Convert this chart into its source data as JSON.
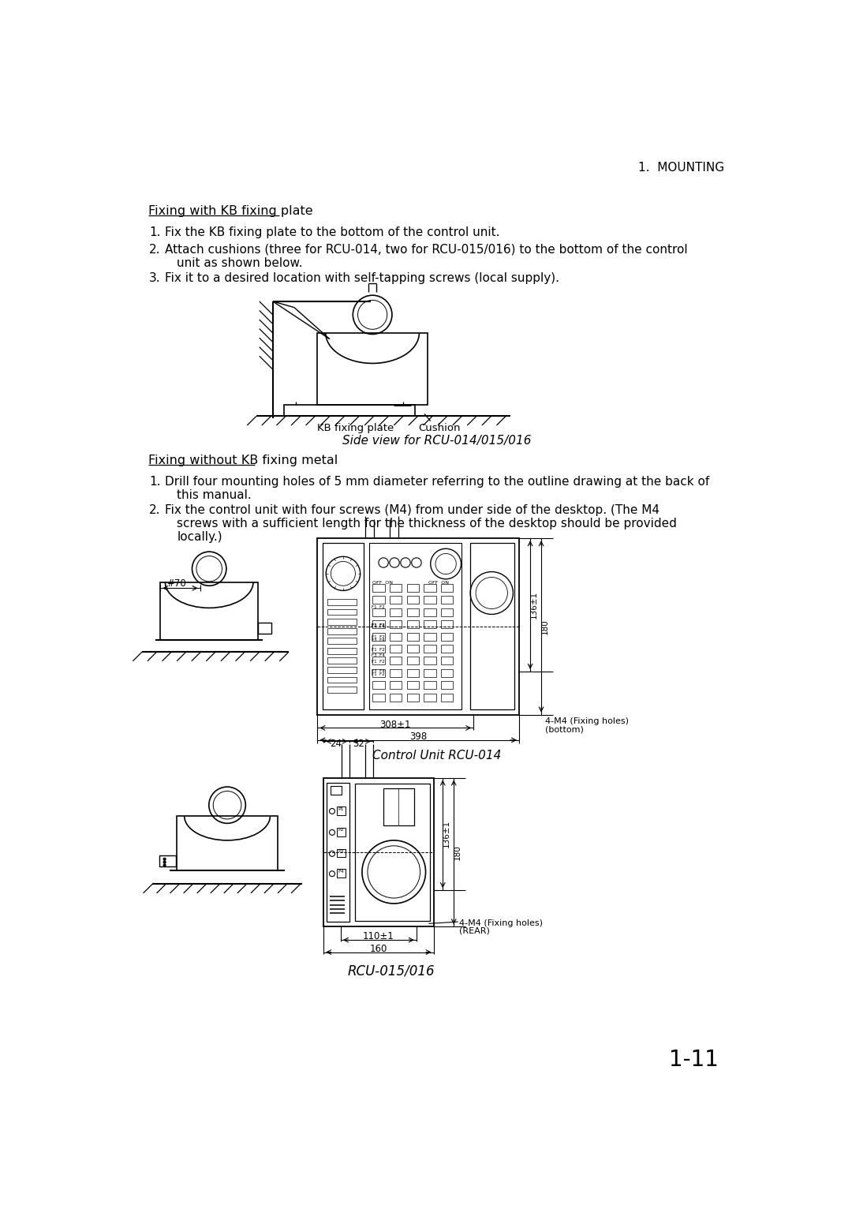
{
  "page_title": "1.  MOUNTING",
  "page_number": "1-11",
  "section1_title": "Fixing with KB fixing plate",
  "section1_items": [
    "Fix the KB fixing plate to the bottom of the control unit.",
    "Attach cushions (three for RCU-014, two for RCU-015/016) to the bottom of the control",
    "unit as shown below.",
    "Fix it to a desired location with self-tapping screws (local supply)."
  ],
  "fig1_caption": "Side view for RCU-014/015/016",
  "section2_title": "Fixing without KB fixing metal",
  "section2_items_l1": "Drill four mounting holes of 5 mm diameter referring to the outline drawing at the back of",
  "section2_items_l2": "this manual.",
  "section2_items_l3": "Fix the control unit with four screws (M4) from under side of the desktop. (The M4",
  "section2_items_l4": "screws with a sufficient length for the thickness of the desktop should be provided",
  "section2_items_l5": "locally.)",
  "fig2_caption": "Control Unit RCU-014",
  "fig3_caption": "RCU-015/016",
  "bg_color": "#ffffff",
  "text_color": "#000000"
}
